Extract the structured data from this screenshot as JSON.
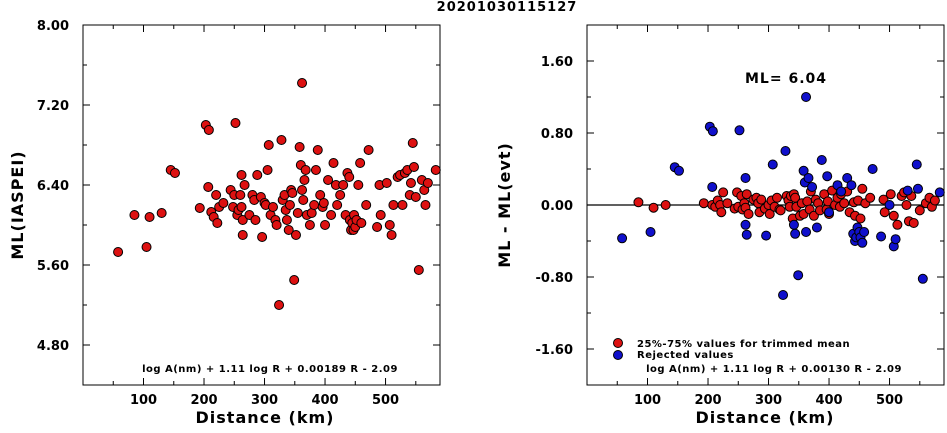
{
  "title": "20201030115127",
  "left_panel": {
    "ylabel": "ML(IASPEI)",
    "xlabel": "Distance (km)",
    "formula": "log A(nm) + 1.11 log R + 0.00189 R - 2.09"
  },
  "right_panel": {
    "ylabel": "ML - ML(evt)",
    "xlabel": "Distance (km)",
    "ml_text": "ML= 6.04",
    "legend_trimmed": "25%-75% values for trimmed mean",
    "legend_rejected": "Rejected values",
    "formula": "log A(nm) + 1.11 log R + 0.00130 R - 2.09"
  },
  "colors": {
    "trimmed": "#dd1111",
    "rejected": "#1010cc"
  },
  "chart_data": [
    {
      "type": "scatter",
      "name": "left",
      "xlim": [
        0,
        590
      ],
      "ylim": [
        4.4,
        8.0
      ],
      "xticks": [
        100,
        200,
        300,
        400,
        500
      ],
      "yticks": [
        4.8,
        5.6,
        6.4,
        7.2,
        8.0
      ],
      "ytick_labels": [
        "4.80",
        "5.60",
        "6.40",
        "7.20",
        "8.00"
      ],
      "points": [
        [
          58,
          5.73
        ],
        [
          85,
          6.1
        ],
        [
          105,
          5.78
        ],
        [
          110,
          6.08
        ],
        [
          130,
          6.12
        ],
        [
          145,
          6.55
        ],
        [
          152,
          6.52
        ],
        [
          193,
          6.17
        ],
        [
          203,
          7.0
        ],
        [
          208,
          6.95
        ],
        [
          207,
          6.38
        ],
        [
          212,
          6.13
        ],
        [
          216,
          6.08
        ],
        [
          220,
          6.3
        ],
        [
          222,
          6.02
        ],
        [
          225,
          6.18
        ],
        [
          232,
          6.22
        ],
        [
          244,
          6.35
        ],
        [
          248,
          6.18
        ],
        [
          252,
          7.02
        ],
        [
          250,
          6.3
        ],
        [
          255,
          6.1
        ],
        [
          257,
          6.15
        ],
        [
          260,
          6.3
        ],
        [
          262,
          6.5
        ],
        [
          262,
          6.18
        ],
        [
          264,
          6.05
        ],
        [
          264,
          5.9
        ],
        [
          267,
          6.4
        ],
        [
          275,
          6.1
        ],
        [
          280,
          6.3
        ],
        [
          283,
          6.25
        ],
        [
          285,
          6.05
        ],
        [
          288,
          6.5
        ],
        [
          294,
          6.28
        ],
        [
          296,
          5.88
        ],
        [
          300,
          6.22
        ],
        [
          302,
          6.2
        ],
        [
          305,
          6.55
        ],
        [
          307,
          6.8
        ],
        [
          310,
          6.1
        ],
        [
          314,
          6.18
        ],
        [
          318,
          6.05
        ],
        [
          320,
          6.0
        ],
        [
          324,
          5.2
        ],
        [
          328,
          6.85
        ],
        [
          330,
          6.25
        ],
        [
          333,
          6.3
        ],
        [
          335,
          6.15
        ],
        [
          337,
          6.05
        ],
        [
          340,
          5.95
        ],
        [
          342,
          6.2
        ],
        [
          344,
          6.35
        ],
        [
          346,
          6.32
        ],
        [
          349,
          5.45
        ],
        [
          352,
          5.9
        ],
        [
          355,
          6.12
        ],
        [
          358,
          6.78
        ],
        [
          360,
          6.6
        ],
        [
          362,
          7.42
        ],
        [
          362,
          6.35
        ],
        [
          364,
          6.25
        ],
        [
          366,
          6.45
        ],
        [
          368,
          6.55
        ],
        [
          370,
          6.1
        ],
        [
          375,
          6.0
        ],
        [
          378,
          6.12
        ],
        [
          382,
          6.2
        ],
        [
          385,
          6.55
        ],
        [
          388,
          6.75
        ],
        [
          392,
          6.3
        ],
        [
          396,
          6.18
        ],
        [
          398,
          6.22
        ],
        [
          400,
          6.0
        ],
        [
          405,
          6.45
        ],
        [
          410,
          6.1
        ],
        [
          414,
          6.62
        ],
        [
          418,
          6.4
        ],
        [
          420,
          6.2
        ],
        [
          425,
          6.3
        ],
        [
          430,
          6.4
        ],
        [
          434,
          6.1
        ],
        [
          437,
          6.52
        ],
        [
          440,
          6.48
        ],
        [
          441,
          6.05
        ],
        [
          443,
          5.95
        ],
        [
          445,
          6.02
        ],
        [
          447,
          5.95
        ],
        [
          448,
          6.1
        ],
        [
          450,
          5.98
        ],
        [
          452,
          6.05
        ],
        [
          455,
          6.4
        ],
        [
          458,
          6.62
        ],
        [
          460,
          6.02
        ],
        [
          468,
          6.2
        ],
        [
          472,
          6.75
        ],
        [
          486,
          5.98
        ],
        [
          490,
          6.4
        ],
        [
          492,
          6.1
        ],
        [
          502,
          6.42
        ],
        [
          507,
          6.0
        ],
        [
          510,
          5.9
        ],
        [
          513,
          6.2
        ],
        [
          520,
          6.48
        ],
        [
          524,
          6.5
        ],
        [
          528,
          6.2
        ],
        [
          532,
          6.52
        ],
        [
          536,
          6.55
        ],
        [
          540,
          6.3
        ],
        [
          542,
          6.42
        ],
        [
          545,
          6.82
        ],
        [
          547,
          6.58
        ],
        [
          550,
          6.28
        ],
        [
          555,
          5.55
        ],
        [
          560,
          6.45
        ],
        [
          564,
          6.35
        ],
        [
          566,
          6.2
        ],
        [
          570,
          6.42
        ],
        [
          583,
          6.55
        ]
      ]
    },
    {
      "type": "scatter",
      "name": "right",
      "xlim": [
        0,
        590
      ],
      "ylim": [
        -2.0,
        2.0
      ],
      "xticks": [
        100,
        200,
        300,
        400,
        500
      ],
      "yticks": [
        -1.6,
        -0.8,
        0.0,
        0.8,
        1.6
      ],
      "ytick_labels": [
        "-1.60",
        "-0.80",
        "0.00",
        "0.80",
        "1.60"
      ],
      "hline": 0.0,
      "series": [
        {
          "name": "25%-75% values for trimmed mean",
          "points": [
            [
              85,
              0.03
            ],
            [
              110,
              -0.03
            ],
            [
              130,
              0.0
            ],
            [
              193,
              0.02
            ],
            [
              207,
              0.0
            ],
            [
              212,
              -0.02
            ],
            [
              216,
              0.05
            ],
            [
              220,
              0.0
            ],
            [
              222,
              -0.08
            ],
            [
              225,
              0.14
            ],
            [
              232,
              0.02
            ],
            [
              244,
              -0.04
            ],
            [
              248,
              0.14
            ],
            [
              250,
              -0.02
            ],
            [
              255,
              0.1
            ],
            [
              257,
              -0.05
            ],
            [
              260,
              0.02
            ],
            [
              262,
              -0.03
            ],
            [
              264,
              0.12
            ],
            [
              267,
              -0.1
            ],
            [
              275,
              0.06
            ],
            [
              280,
              0.08
            ],
            [
              283,
              0.02
            ],
            [
              285,
              -0.08
            ],
            [
              288,
              0.06
            ],
            [
              294,
              -0.04
            ],
            [
              300,
              0.0
            ],
            [
              302,
              -0.1
            ],
            [
              305,
              0.05
            ],
            [
              310,
              -0.02
            ],
            [
              314,
              0.08
            ],
            [
              318,
              -0.05
            ],
            [
              320,
              -0.06
            ],
            [
              330,
              0.1
            ],
            [
              333,
              0.05
            ],
            [
              335,
              -0.02
            ],
            [
              337,
              0.1
            ],
            [
              340,
              -0.15
            ],
            [
              342,
              0.12
            ],
            [
              344,
              0.08
            ],
            [
              346,
              -0.02
            ],
            [
              352,
              -0.12
            ],
            [
              355,
              0.02
            ],
            [
              358,
              -0.1
            ],
            [
              364,
              0.04
            ],
            [
              368,
              -0.05
            ],
            [
              370,
              0.15
            ],
            [
              375,
              -0.12
            ],
            [
              378,
              0.06
            ],
            [
              382,
              0.02
            ],
            [
              385,
              -0.06
            ],
            [
              392,
              0.12
            ],
            [
              396,
              -0.05
            ],
            [
              398,
              0.04
            ],
            [
              400,
              -0.1
            ],
            [
              405,
              0.16
            ],
            [
              410,
              0.0
            ],
            [
              414,
              0.08
            ],
            [
              418,
              -0.02
            ],
            [
              420,
              0.12
            ],
            [
              425,
              0.02
            ],
            [
              430,
              0.15
            ],
            [
              434,
              -0.08
            ],
            [
              441,
              0.03
            ],
            [
              443,
              -0.12
            ],
            [
              448,
              0.05
            ],
            [
              452,
              -0.15
            ],
            [
              455,
              0.18
            ],
            [
              460,
              0.02
            ],
            [
              468,
              0.08
            ],
            [
              490,
              0.06
            ],
            [
              492,
              -0.08
            ],
            [
              502,
              0.12
            ],
            [
              507,
              -0.12
            ],
            [
              513,
              -0.22
            ],
            [
              520,
              0.1
            ],
            [
              524,
              0.14
            ],
            [
              528,
              0.0
            ],
            [
              532,
              -0.18
            ],
            [
              536,
              0.1
            ],
            [
              540,
              -0.2
            ],
            [
              550,
              -0.06
            ],
            [
              560,
              0.02
            ],
            [
              566,
              0.08
            ],
            [
              570,
              -0.02
            ],
            [
              575,
              0.05
            ]
          ]
        },
        {
          "name": "Rejected values",
          "points": [
            [
              58,
              -0.37
            ],
            [
              105,
              -0.3
            ],
            [
              145,
              0.42
            ],
            [
              152,
              0.38
            ],
            [
              203,
              0.87
            ],
            [
              208,
              0.82
            ],
            [
              207,
              0.2
            ],
            [
              252,
              0.83
            ],
            [
              262,
              -0.22
            ],
            [
              262,
              0.3
            ],
            [
              264,
              -0.33
            ],
            [
              296,
              -0.34
            ],
            [
              307,
              0.45
            ],
            [
              324,
              -1.0
            ],
            [
              328,
              0.6
            ],
            [
              342,
              -0.22
            ],
            [
              344,
              -0.32
            ],
            [
              349,
              -0.78
            ],
            [
              358,
              0.38
            ],
            [
              360,
              0.25
            ],
            [
              362,
              1.2
            ],
            [
              362,
              -0.3
            ],
            [
              366,
              0.3
            ],
            [
              372,
              0.2
            ],
            [
              380,
              -0.25
            ],
            [
              388,
              0.5
            ],
            [
              397,
              0.32
            ],
            [
              400,
              -0.08
            ],
            [
              414,
              0.22
            ],
            [
              420,
              0.15
            ],
            [
              430,
              0.3
            ],
            [
              437,
              0.22
            ],
            [
              440,
              -0.32
            ],
            [
              443,
              -0.4
            ],
            [
              445,
              -0.36
            ],
            [
              447,
              -0.25
            ],
            [
              450,
              -0.3
            ],
            [
              452,
              -0.36
            ],
            [
              455,
              -0.42
            ],
            [
              458,
              -0.3
            ],
            [
              472,
              0.4
            ],
            [
              486,
              -0.35
            ],
            [
              500,
              0.0
            ],
            [
              507,
              -0.46
            ],
            [
              510,
              -0.38
            ],
            [
              530,
              0.16
            ],
            [
              545,
              0.45
            ],
            [
              547,
              0.18
            ],
            [
              555,
              -0.82
            ],
            [
              583,
              0.14
            ]
          ]
        }
      ]
    }
  ]
}
